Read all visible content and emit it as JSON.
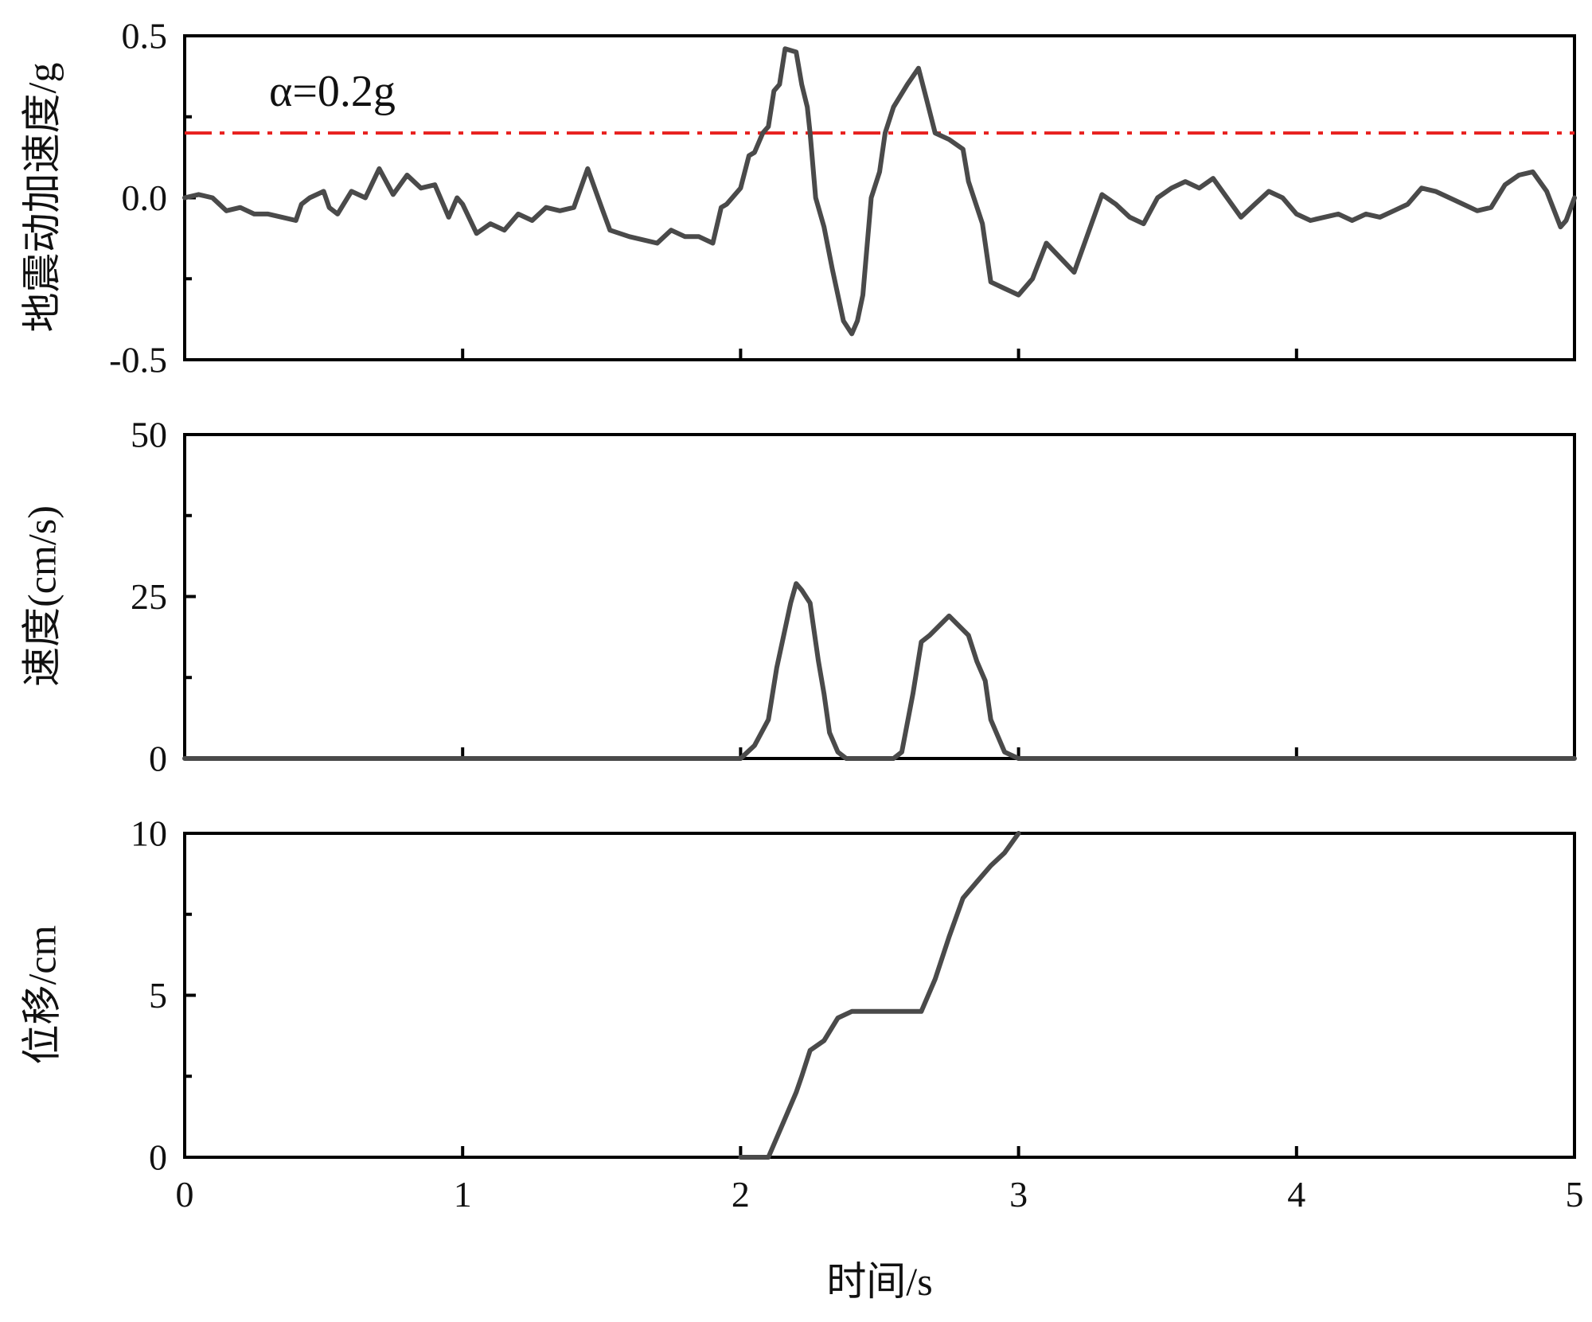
{
  "chart_data": [
    {
      "type": "line",
      "ylabel": "地震动加速度/g",
      "xlim": [
        0,
        5
      ],
      "ylim": [
        -0.5,
        0.5
      ],
      "yticks": [
        -0.5,
        0.0,
        0.5
      ],
      "yticks_text": [
        "-0.5",
        "0.0",
        "0.5"
      ],
      "xticks": [
        0,
        1,
        2,
        3,
        4,
        5
      ],
      "grid": false,
      "annotation": "α=0.2g",
      "threshold": {
        "value": 0.2,
        "color": "#e8201e"
      },
      "series": [
        {
          "color": "#4a4a4a",
          "x": [
            0.0,
            0.05,
            0.1,
            0.15,
            0.2,
            0.25,
            0.3,
            0.35,
            0.4,
            0.42,
            0.45,
            0.5,
            0.52,
            0.55,
            0.6,
            0.65,
            0.7,
            0.75,
            0.8,
            0.85,
            0.9,
            0.95,
            0.98,
            1.0,
            1.05,
            1.1,
            1.15,
            1.2,
            1.25,
            1.3,
            1.35,
            1.4,
            1.45,
            1.5,
            1.53,
            1.6,
            1.7,
            1.75,
            1.8,
            1.85,
            1.9,
            1.93,
            1.95,
            2.0,
            2.03,
            2.05,
            2.08,
            2.1,
            2.12,
            2.14,
            2.16,
            2.2,
            2.22,
            2.24,
            2.25,
            2.27,
            2.3,
            2.33,
            2.35,
            2.37,
            2.4,
            2.42,
            2.44,
            2.45,
            2.47,
            2.5,
            2.52,
            2.55,
            2.6,
            2.64,
            2.67,
            2.7,
            2.75,
            2.8,
            2.82,
            2.87,
            2.9,
            2.95,
            3.0,
            3.05,
            3.1,
            3.2,
            3.3,
            3.35,
            3.4,
            3.45,
            3.5,
            3.55,
            3.6,
            3.65,
            3.7,
            3.8,
            3.85,
            3.9,
            3.95,
            4.0,
            4.05,
            4.1,
            4.15,
            4.2,
            4.25,
            4.3,
            4.35,
            4.4,
            4.45,
            4.5,
            4.55,
            4.6,
            4.65,
            4.7,
            4.75,
            4.8,
            4.85,
            4.9,
            4.95,
            4.97,
            5.0
          ],
          "y": [
            0.0,
            0.01,
            0.0,
            -0.04,
            -0.03,
            -0.05,
            -0.05,
            -0.06,
            -0.07,
            -0.02,
            0.0,
            0.02,
            -0.03,
            -0.05,
            0.02,
            0.0,
            0.09,
            0.01,
            0.07,
            0.03,
            0.04,
            -0.06,
            0.0,
            -0.02,
            -0.11,
            -0.08,
            -0.1,
            -0.05,
            -0.07,
            -0.03,
            -0.04,
            -0.03,
            0.09,
            -0.03,
            -0.1,
            -0.12,
            -0.14,
            -0.1,
            -0.12,
            -0.12,
            -0.14,
            -0.03,
            -0.02,
            0.03,
            0.13,
            0.14,
            0.2,
            0.22,
            0.33,
            0.35,
            0.46,
            0.45,
            0.35,
            0.28,
            0.2,
            0.0,
            -0.09,
            -0.22,
            -0.3,
            -0.38,
            -0.42,
            -0.38,
            -0.3,
            -0.2,
            0.0,
            0.08,
            0.2,
            0.28,
            0.35,
            0.4,
            0.3,
            0.2,
            0.18,
            0.15,
            0.05,
            -0.08,
            -0.26,
            -0.28,
            -0.3,
            -0.25,
            -0.14,
            -0.23,
            0.01,
            -0.02,
            -0.06,
            -0.08,
            0.0,
            0.03,
            0.05,
            0.03,
            0.06,
            -0.06,
            -0.02,
            0.02,
            0.0,
            -0.05,
            -0.07,
            -0.06,
            -0.05,
            -0.07,
            -0.05,
            -0.06,
            -0.04,
            -0.02,
            0.03,
            0.02,
            0.0,
            -0.02,
            -0.04,
            -0.03,
            0.04,
            0.07,
            0.08,
            0.02,
            -0.09,
            -0.07,
            0.0
          ]
        }
      ]
    },
    {
      "type": "line",
      "ylabel": "速度(cm/s)",
      "xlim": [
        0,
        5
      ],
      "ylim": [
        0,
        50
      ],
      "yticks": [
        0,
        25,
        50
      ],
      "yticks_text": [
        "0",
        "25",
        "50"
      ],
      "xticks": [
        0,
        1,
        2,
        3,
        4,
        5
      ],
      "grid": false,
      "series": [
        {
          "color": "#4a4a4a",
          "x": [
            0.0,
            2.0,
            2.05,
            2.1,
            2.13,
            2.15,
            2.18,
            2.2,
            2.22,
            2.25,
            2.28,
            2.3,
            2.32,
            2.35,
            2.38,
            2.42,
            2.45,
            2.5,
            2.55,
            2.58,
            2.62,
            2.65,
            2.68,
            2.75,
            2.82,
            2.85,
            2.88,
            2.9,
            2.95,
            3.0,
            5.0
          ],
          "y": [
            0,
            0,
            2,
            6,
            14,
            18,
            24,
            27,
            26,
            24,
            15,
            10,
            4,
            1,
            0,
            0,
            0,
            0,
            0,
            1,
            10,
            18,
            19,
            22,
            19,
            15,
            12,
            6,
            1,
            0,
            0
          ]
        }
      ]
    },
    {
      "type": "line",
      "ylabel": "位移/cm",
      "xlabel": "时间/s",
      "xlim": [
        0,
        5
      ],
      "ylim": [
        0,
        10
      ],
      "yticks": [
        0,
        5,
        10
      ],
      "yticks_text": [
        "0",
        "5",
        "10"
      ],
      "xticks": [
        0,
        1,
        2,
        3,
        4,
        5
      ],
      "xticks_text": [
        "0",
        "1",
        "2",
        "3",
        "4",
        "5"
      ],
      "grid": false,
      "series": [
        {
          "color": "#4a4a4a",
          "x": [
            2.0,
            2.1,
            2.15,
            2.2,
            2.22,
            2.25,
            2.3,
            2.35,
            2.4,
            2.45,
            2.5,
            2.55,
            2.6,
            2.65,
            2.7,
            2.75,
            2.8,
            2.85,
            2.9,
            2.95,
            3.0
          ],
          "y": [
            0,
            0,
            1,
            2,
            2.5,
            3.3,
            3.6,
            4.3,
            4.5,
            4.5,
            4.5,
            4.5,
            4.5,
            4.5,
            5.5,
            6.8,
            8.0,
            8.5,
            9.0,
            9.4,
            10.0
          ]
        }
      ]
    }
  ]
}
